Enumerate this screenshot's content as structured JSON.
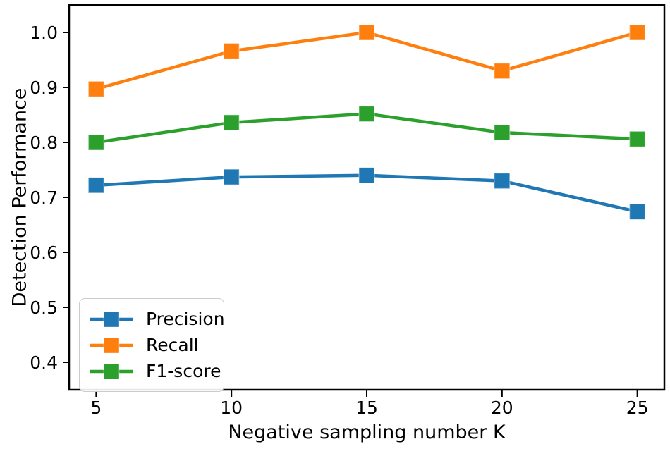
{
  "chart_data": {
    "type": "line",
    "title": "",
    "xlabel": "Negative sampling number K",
    "ylabel": "Detection Performance",
    "x": [
      5,
      10,
      15,
      20,
      25
    ],
    "series": [
      {
        "name": "Precision",
        "color": "#1f77b4",
        "marker": "square",
        "values": [
          0.722,
          0.737,
          0.74,
          0.73,
          0.674
        ]
      },
      {
        "name": "Recall",
        "color": "#ff7f0e",
        "marker": "square",
        "values": [
          0.897,
          0.966,
          1.0,
          0.93,
          1.0
        ]
      },
      {
        "name": "F1-score",
        "color": "#2ca02c",
        "marker": "square",
        "values": [
          0.8,
          0.836,
          0.852,
          0.818,
          0.806
        ]
      }
    ],
    "xticks": [
      5,
      10,
      15,
      20,
      25
    ],
    "yticks": [
      0.4,
      0.5,
      0.6,
      0.7,
      0.8,
      0.9,
      1.0
    ],
    "xlim": [
      4,
      26
    ],
    "ylim": [
      0.35,
      1.05
    ],
    "grid": false,
    "legend_position": "lower left",
    "axis_color": "#000000",
    "background_color": "#ffffff"
  }
}
